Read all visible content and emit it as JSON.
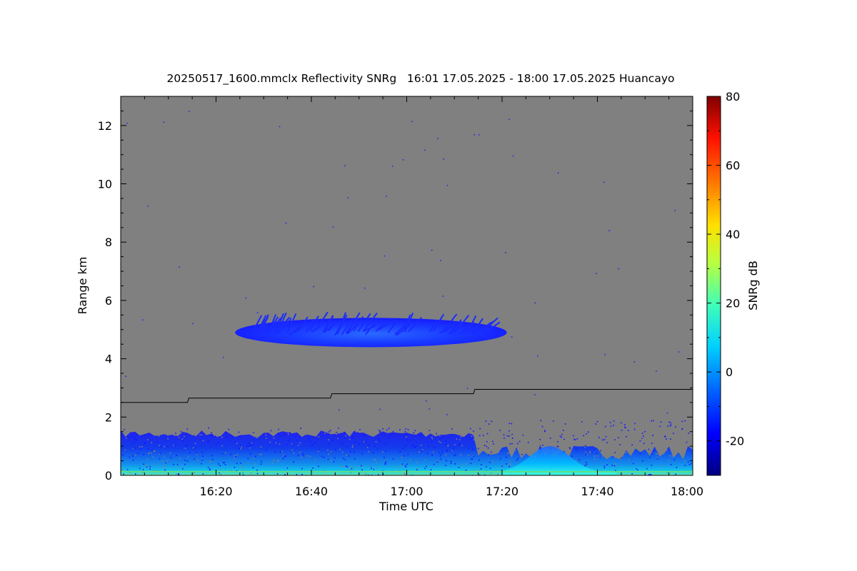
{
  "chart_data": {
    "type": "heatmap",
    "title": "20250517_1600.mmclx Reflectivity SNRg   16:01 17.05.2025 - 18:00 17.05.2025 Huancayo",
    "xlabel": "Time UTC",
    "ylabel": "Range km",
    "x_ticks": [
      "16:20",
      "16:40",
      "17:00",
      "17:20",
      "17:40",
      "18:00"
    ],
    "x_tick_minutes": [
      20,
      40,
      60,
      80,
      100,
      120
    ],
    "xlim_minutes": [
      0,
      120
    ],
    "y_ticks": [
      0,
      2,
      4,
      6,
      8,
      10,
      12
    ],
    "ylim": [
      0,
      13
    ],
    "colorbar": {
      "label": "SNRg dB",
      "ticks": [
        80,
        60,
        40,
        20,
        0,
        -20
      ],
      "range": [
        -30,
        80
      ],
      "colormap": "jet"
    },
    "background_color": "#808080",
    "line_series": {
      "name": "",
      "points": [
        [
          0,
          2.5
        ],
        [
          14,
          2.5
        ],
        [
          14.3,
          2.65
        ],
        [
          44,
          2.65
        ],
        [
          44.3,
          2.8
        ],
        [
          74,
          2.8
        ],
        [
          74.3,
          2.95
        ],
        [
          120,
          2.95
        ]
      ]
    },
    "features": [
      {
        "kind": "cloud_layer",
        "t_start": 24,
        "t_end": 81,
        "base_km": 4.4,
        "top_km": 5.6,
        "snr_db": -18
      },
      {
        "kind": "low_level_echo",
        "t_start": 0,
        "t_end": 120,
        "base_km": 0.0,
        "top_km": 1.6,
        "snr_db": -15
      },
      {
        "kind": "convective_bump",
        "t_start": 80,
        "t_end": 104,
        "base_km": 0.0,
        "top_km": 0.9,
        "snr_db": 0
      }
    ]
  }
}
